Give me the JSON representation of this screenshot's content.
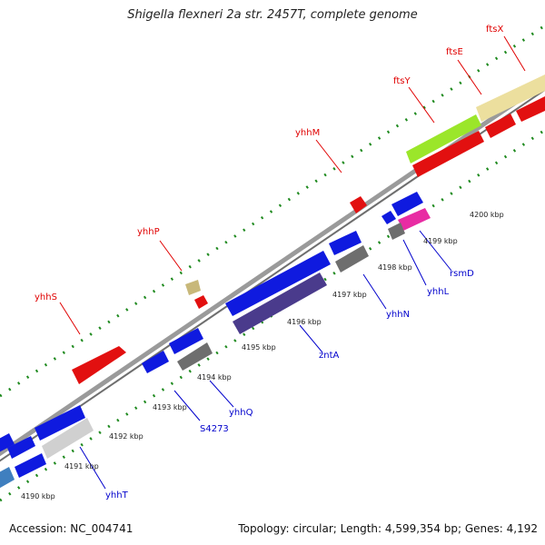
{
  "title": "Shigella flexneri 2a str. 2457T, complete genome",
  "footer": {
    "accession": "Accession: NC_004741",
    "topology": "Topology: circular; Length: 4,599,354 bp; Genes: 4,192"
  },
  "colors": {
    "backbone": "#8a8a8a",
    "tick": "#1f8a1f",
    "label_top": "#e00000",
    "label_bottom": "#0000cc",
    "tick_label": "#222222"
  },
  "kbp_labels": [
    "4190 kbp",
    "4191 kbp",
    "4192 kbp",
    "4193 kbp",
    "4194 kbp",
    "4195 kbp",
    "4196 kbp",
    "4197 kbp",
    "4198 kbp",
    "4199 kbp",
    "4200 kbp"
  ],
  "top_labels": [
    "yhhS",
    "yhhP",
    "yhhM",
    "ftsY",
    "ftsE",
    "ftsX"
  ],
  "bottom_labels": [
    "yhhT",
    "S4273",
    "yhhQ",
    "zntA",
    "yhhN",
    "yhhL",
    "rsmD"
  ]
}
